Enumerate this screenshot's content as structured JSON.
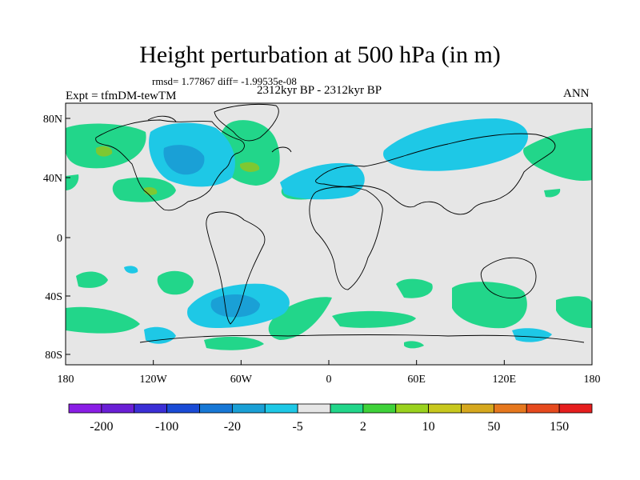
{
  "title": "Height perturbation at 500 hPa (in m)",
  "stats": "rmsd= 1.77867 diff= -1.99535e-08",
  "experiment": "Expt = tfmDM-tewTM",
  "period": "2312kyr BP - 2312kyr BP",
  "season": "ANN",
  "axes": {
    "lon_labels": [
      "180",
      "120W",
      "60W",
      "0",
      "60E",
      "120E",
      "180"
    ],
    "lat_labels": [
      "80N",
      "40N",
      "0",
      "40S",
      "80S"
    ]
  },
  "colorbar": {
    "colors": [
      "#8a1ee6",
      "#6a1fd6",
      "#3b2fd6",
      "#1a4bd6",
      "#1778d6",
      "#1aa0d6",
      "#1ec8e6",
      "#e6e6e6",
      "#22d68a",
      "#3fd23a",
      "#9ad21e",
      "#c8c81e",
      "#d6a81e",
      "#e6781e",
      "#e64a1e",
      "#e61e1e"
    ],
    "labels": [
      "-200",
      "-100",
      "-20",
      "-5",
      "2",
      "10",
      "50",
      "150"
    ]
  },
  "map_colors": {
    "background": "#e6e6e6",
    "positive": "#22d68a",
    "negative": "#1ec8e6",
    "strong_negative": "#1aa0d6",
    "strong_positive": "#7ec832"
  }
}
